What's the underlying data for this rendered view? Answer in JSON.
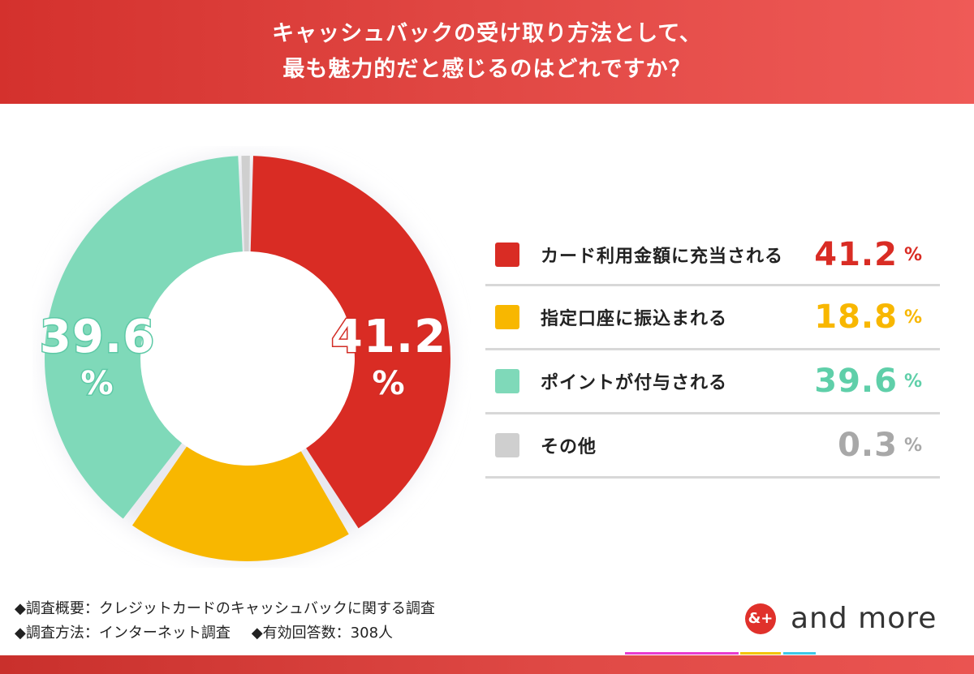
{
  "header": {
    "line1": "キャッシュバックの受け取り方法として、",
    "line2": "最も魅力的だと感じるのはどれですか？"
  },
  "chart_data": {
    "type": "pie",
    "categories": [
      "カード利用金額に充当される",
      "指定口座に振込まれる",
      "ポイントが付与される",
      "その他"
    ],
    "values": [
      41.2,
      18.8,
      39.6,
      0.3
    ],
    "colors": [
      "#d92c24",
      "#f8b700",
      "#7fd9b9",
      "#cfcfcf"
    ],
    "unit": "%",
    "donut_labels": [
      "41.2",
      "39.6"
    ],
    "legend_placement": "right"
  },
  "legend": [
    {
      "label": "カード利用金額に充当される",
      "value": "41.2",
      "unit": "%",
      "color": "#d92c24"
    },
    {
      "label": "指定口座に振込まれる",
      "value": "18.8",
      "unit": "%",
      "color": "#f8b700"
    },
    {
      "label": "ポイントが付与される",
      "value": "39.6",
      "unit": "%",
      "color": "#5fcfa9"
    },
    {
      "label": "その他",
      "value": "0.3",
      "unit": "%",
      "color": "#a8a8a8"
    }
  ],
  "notes": {
    "line1": "◆調査概要：クレジットカードのキャッシュバックに関する調査",
    "line2a": "◆調査方法：インターネット調査",
    "line2b": "◆有効回答数：308人"
  },
  "brand": {
    "mark": "&+",
    "name": "and more"
  }
}
